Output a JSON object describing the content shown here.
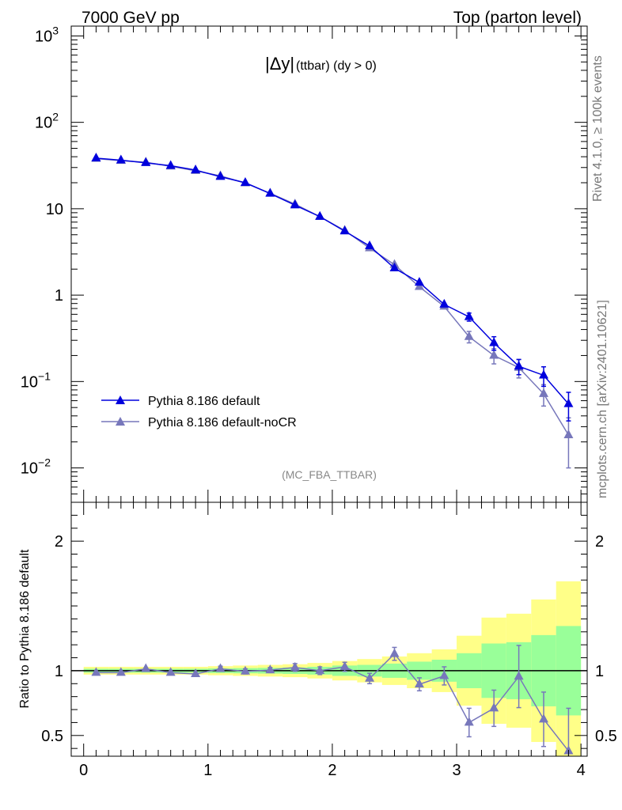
{
  "header": {
    "left": "7000 GeV pp",
    "right": "Top (parton level)"
  },
  "side_labels": {
    "rivet": "Rivet 4.1.0, ≥ 100k events",
    "mcplots": "mcplots.cern.ch [arXiv:2401.10621]"
  },
  "chart_data": [
    {
      "type": "line",
      "panel": "main",
      "title_main": "|Δy|",
      "title_sub": "(ttbar) (dy > 0)",
      "analysis_tag": "(MC_FBA_TTBAR)",
      "yscale": "log",
      "xlim": [
        -0.1,
        4.05
      ],
      "ylim": [
        0.004,
        1300
      ],
      "y_ticks": [
        {
          "value": 1000,
          "base": "10",
          "exp": "3"
        },
        {
          "value": 100,
          "base": "10",
          "exp": "2"
        },
        {
          "value": 10,
          "base": "10",
          "exp": ""
        },
        {
          "value": 1,
          "base": "1",
          "exp": ""
        },
        {
          "value": 0.1,
          "base": "10",
          "exp": "−1"
        },
        {
          "value": 0.01,
          "base": "10",
          "exp": "−2"
        }
      ],
      "legend_position": "bottom-left",
      "series": [
        {
          "name": "Pythia 8.186 default",
          "color": "#0000dd",
          "x": [
            0.1,
            0.3,
            0.5,
            0.7,
            0.9,
            1.1,
            1.3,
            1.5,
            1.7,
            1.9,
            2.1,
            2.3,
            2.5,
            2.7,
            2.9,
            3.1,
            3.3,
            3.5,
            3.7,
            3.9
          ],
          "y": [
            38.5,
            36.5,
            34.0,
            31.5,
            28.0,
            23.5,
            20.0,
            15.0,
            11.0,
            8.1,
            5.5,
            3.7,
            2.05,
            1.4,
            0.78,
            0.56,
            0.28,
            0.15,
            0.118,
            0.055
          ],
          "err": [
            0.4,
            0.4,
            0.4,
            0.4,
            0.3,
            0.3,
            0.3,
            0.2,
            0.2,
            0.15,
            0.12,
            0.1,
            0.07,
            0.06,
            0.04,
            0.06,
            0.05,
            0.03,
            0.03,
            0.02
          ]
        },
        {
          "name": "Pythia 8.186 default-noCR",
          "color": "#7777bb",
          "x": [
            0.1,
            0.3,
            0.5,
            0.7,
            0.9,
            1.1,
            1.3,
            1.5,
            1.7,
            1.9,
            2.1,
            2.3,
            2.5,
            2.7,
            2.9,
            3.1,
            3.3,
            3.5,
            3.7,
            3.9
          ],
          "y": [
            38.0,
            36.0,
            34.5,
            31.0,
            27.5,
            24.0,
            19.8,
            15.1,
            11.3,
            8.1,
            5.6,
            3.5,
            2.25,
            1.25,
            0.74,
            0.33,
            0.2,
            0.145,
            0.072,
            0.024
          ],
          "err": [
            0.4,
            0.4,
            0.4,
            0.4,
            0.3,
            0.3,
            0.3,
            0.2,
            0.2,
            0.15,
            0.12,
            0.1,
            0.08,
            0.06,
            0.04,
            0.05,
            0.04,
            0.035,
            0.02,
            0.014
          ]
        }
      ]
    },
    {
      "type": "line",
      "panel": "ratio",
      "ylabel": "Ratio to Pythia 8.186 default",
      "xlim": [
        -0.1,
        4.05
      ],
      "ylim": [
        0.34,
        2.3
      ],
      "x_ticks": [
        "0",
        "1",
        "2",
        "3",
        "4"
      ],
      "y_ticks": [
        "0.5",
        "1",
        "2"
      ],
      "bands": {
        "edges": [
          0.0,
          0.2,
          0.4,
          0.6,
          0.8,
          1.0,
          1.2,
          1.4,
          1.6,
          1.8,
          2.0,
          2.2,
          2.4,
          2.6,
          2.8,
          3.0,
          3.2,
          3.4,
          3.6,
          3.8,
          4.0
        ],
        "green_color": "#99ff99",
        "yellow_color": "#ffff88",
        "green_lo": [
          0.985,
          0.985,
          0.985,
          0.985,
          0.985,
          0.982,
          0.98,
          0.978,
          0.975,
          0.97,
          0.96,
          0.955,
          0.945,
          0.93,
          0.915,
          0.865,
          0.79,
          0.78,
          0.725,
          0.655
        ],
        "green_hi": [
          1.015,
          1.015,
          1.015,
          1.015,
          1.015,
          1.018,
          1.02,
          1.022,
          1.025,
          1.03,
          1.04,
          1.045,
          1.055,
          1.07,
          1.085,
          1.135,
          1.21,
          1.22,
          1.275,
          1.345
        ],
        "yellow_lo": [
          0.97,
          0.97,
          0.97,
          0.97,
          0.97,
          0.965,
          0.96,
          0.955,
          0.95,
          0.94,
          0.925,
          0.91,
          0.89,
          0.865,
          0.835,
          0.73,
          0.59,
          0.56,
          0.45,
          0.31
        ],
        "yellow_hi": [
          1.03,
          1.03,
          1.03,
          1.03,
          1.03,
          1.035,
          1.04,
          1.045,
          1.05,
          1.06,
          1.075,
          1.09,
          1.11,
          1.135,
          1.165,
          1.27,
          1.41,
          1.44,
          1.55,
          1.69
        ]
      },
      "series": [
        {
          "name": "Pythia 8.186 default-noCR",
          "color": "#7777bb",
          "x": [
            0.1,
            0.3,
            0.5,
            0.7,
            0.9,
            1.1,
            1.3,
            1.5,
            1.7,
            1.9,
            2.1,
            2.3,
            2.5,
            2.7,
            2.9,
            3.1,
            3.3,
            3.5,
            3.7,
            3.9
          ],
          "y": [
            0.985,
            0.985,
            1.015,
            0.985,
            0.975,
            1.015,
            0.995,
            1.005,
            1.025,
            1.0,
            1.03,
            0.94,
            1.13,
            0.895,
            0.96,
            0.6,
            0.71,
            0.955,
            0.625,
            0.38
          ],
          "err": [
            0.01,
            0.01,
            0.015,
            0.015,
            0.015,
            0.02,
            0.02,
            0.02,
            0.03,
            0.03,
            0.035,
            0.04,
            0.05,
            0.05,
            0.07,
            0.11,
            0.14,
            0.24,
            0.21,
            0.33
          ]
        }
      ]
    }
  ]
}
